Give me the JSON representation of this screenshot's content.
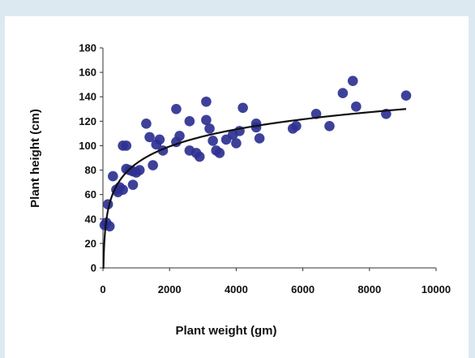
{
  "colors": {
    "background": "#dde9f1",
    "panel": "#ffffff",
    "marker": "#2e3191",
    "trend": "#111111",
    "axis": "#333333"
  },
  "chart_data": {
    "type": "scatter",
    "title": "",
    "xlabel": "Plant weight (gm)",
    "ylabel": "Plant height (cm)",
    "xlim": [
      0,
      10000
    ],
    "ylim": [
      0,
      180
    ],
    "xticks": [
      0,
      2000,
      4000,
      6000,
      8000,
      10000
    ],
    "yticks": [
      0,
      20,
      40,
      60,
      80,
      100,
      120,
      140,
      160,
      180
    ],
    "grid": false,
    "legend": "none",
    "series": [
      {
        "points": [
          [
            50,
            35
          ],
          [
            100,
            37
          ],
          [
            150,
            52
          ],
          [
            200,
            34
          ],
          [
            300,
            75
          ],
          [
            400,
            64
          ],
          [
            450,
            62
          ],
          [
            500,
            66
          ],
          [
            600,
            64
          ],
          [
            600,
            100
          ],
          [
            700,
            100
          ],
          [
            700,
            81
          ],
          [
            800,
            80
          ],
          [
            900,
            68
          ],
          [
            900,
            79
          ],
          [
            1000,
            78
          ],
          [
            1100,
            80
          ],
          [
            1300,
            118
          ],
          [
            1400,
            107
          ],
          [
            1500,
            84
          ],
          [
            1600,
            101
          ],
          [
            1700,
            105
          ],
          [
            1800,
            96
          ],
          [
            2200,
            130
          ],
          [
            2200,
            103
          ],
          [
            2300,
            108
          ],
          [
            2600,
            120
          ],
          [
            2600,
            96
          ],
          [
            2800,
            94
          ],
          [
            2900,
            91
          ],
          [
            3100,
            136
          ],
          [
            3100,
            121
          ],
          [
            3200,
            114
          ],
          [
            3300,
            104
          ],
          [
            3400,
            96
          ],
          [
            3500,
            94
          ],
          [
            3700,
            105
          ],
          [
            3900,
            109
          ],
          [
            4000,
            102
          ],
          [
            4100,
            112
          ],
          [
            4200,
            131
          ],
          [
            4600,
            115
          ],
          [
            4600,
            118
          ],
          [
            4700,
            106
          ],
          [
            5700,
            114
          ],
          [
            5800,
            116
          ],
          [
            6400,
            126
          ],
          [
            6800,
            116
          ],
          [
            7200,
            143
          ],
          [
            7500,
            153
          ],
          [
            7600,
            132
          ],
          [
            8500,
            126
          ],
          [
            9100,
            141
          ]
        ]
      }
    ],
    "trendline": {
      "type": "logarithmic",
      "a": 20.24,
      "b": -54.5,
      "x_range": [
        10,
        9100
      ]
    }
  }
}
